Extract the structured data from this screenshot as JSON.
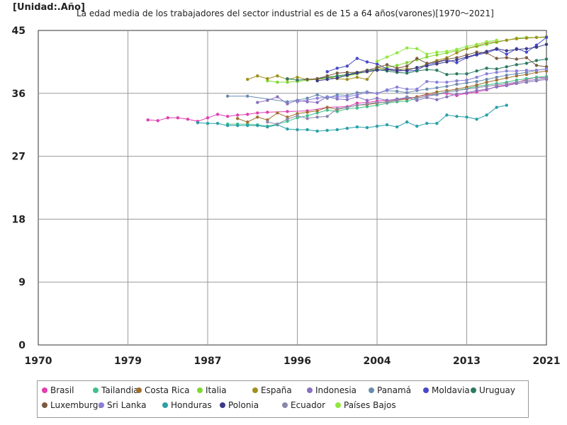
{
  "unit_label": "[Unidad:.Año]",
  "chart_data": {
    "type": "line",
    "title": "La edad media de los trabajadores del sector industrial es de 15 a 64 años(varones)[1970～2021]",
    "xlabel": "",
    "ylabel": "",
    "xlim": [
      1970,
      2021
    ],
    "ylim": [
      0,
      45
    ],
    "x_ticks": [
      "1970",
      "1979",
      "1987",
      "1996",
      "2004",
      "2013",
      "2021"
    ],
    "y_ticks": [
      "0",
      "9",
      "18",
      "27",
      "36",
      "45"
    ],
    "grid": true,
    "legend_position": "bottom",
    "series": [
      {
        "name": "Brasil",
        "color": "#e040b0",
        "x": [
          1981,
          1982,
          1983,
          1984,
          1985,
          1986,
          1987,
          1988,
          1989,
          1990,
          1991,
          1992,
          1993,
          1995,
          1997,
          1999,
          2001,
          2002,
          2003,
          2004,
          2005,
          2006,
          2007,
          2008,
          2009,
          2011,
          2012,
          2013,
          2014,
          2015,
          2016,
          2017,
          2018,
          2019,
          2020,
          2021
        ],
        "y": [
          32.2,
          32.1,
          32.5,
          32.5,
          32.3,
          32.0,
          32.5,
          33.0,
          32.7,
          32.9,
          33.0,
          33.2,
          33.3,
          33.4,
          33.5,
          34.0,
          34.1,
          34.6,
          34.7,
          34.9,
          35.0,
          35.1,
          35.3,
          35.5,
          35.8,
          36.0,
          35.7,
          36.0,
          36.2,
          36.5,
          37.0,
          37.2,
          37.5,
          38.0,
          38.3,
          38.2
        ]
      },
      {
        "name": "Tailandia",
        "color": "#3ec08a",
        "x": [
          1989,
          1990,
          1991,
          1992,
          1993,
          1994,
          1995,
          1996,
          1997,
          1998,
          1999,
          2000,
          2001,
          2002,
          2003,
          2004,
          2005,
          2006,
          2007,
          2008,
          2009,
          2010,
          2011,
          2012,
          2013,
          2014,
          2015,
          2016,
          2017,
          2018,
          2019,
          2020,
          2021
        ],
        "y": [
          31.6,
          31.6,
          31.6,
          31.5,
          31.3,
          31.6,
          32.0,
          32.5,
          32.8,
          33.2,
          33.6,
          33.4,
          33.8,
          33.9,
          34.1,
          34.3,
          34.6,
          34.8,
          34.9,
          35.3,
          35.6,
          35.9,
          36.2,
          36.4,
          36.7,
          37.0,
          37.2,
          37.4,
          37.6,
          37.9,
          38.1,
          38.3,
          38.4
        ]
      },
      {
        "name": "Costa Rica",
        "color": "#a07030",
        "x": [
          1990,
          1991,
          1992,
          1993,
          1994,
          1995,
          1996,
          1997,
          1998,
          1999,
          2000,
          2001,
          2002,
          2003,
          2004,
          2005,
          2006,
          2007,
          2008,
          2009,
          2010,
          2011,
          2012,
          2013,
          2014,
          2015,
          2016,
          2017,
          2018,
          2019,
          2020,
          2021
        ],
        "y": [
          32.4,
          31.9,
          32.6,
          32.2,
          33.2,
          32.6,
          33.1,
          33.3,
          33.5,
          34.0,
          33.7,
          34.0,
          34.3,
          34.4,
          34.6,
          34.8,
          35.0,
          35.2,
          35.5,
          35.9,
          36.2,
          36.4,
          36.6,
          36.9,
          37.2,
          37.6,
          37.9,
          38.2,
          38.5,
          38.7,
          39.0,
          39.2
        ]
      },
      {
        "name": "Italia",
        "color": "#80d830",
        "x": [
          1993,
          1994,
          1995,
          1996,
          1997,
          1998,
          1999,
          2000,
          2001,
          2002,
          2003,
          2004,
          2005,
          2006,
          2007,
          2008,
          2009,
          2010,
          2011,
          2012,
          2013,
          2014,
          2015,
          2016,
          2017,
          2018,
          2019,
          2020,
          2021
        ],
        "y": [
          37.8,
          37.6,
          37.6,
          37.7,
          37.9,
          38.0,
          38.2,
          38.4,
          38.5,
          38.8,
          39.1,
          39.4,
          39.7,
          40.0,
          40.4,
          40.8,
          41.2,
          41.5,
          41.8,
          42.1,
          42.4,
          42.7,
          43.0,
          43.3,
          43.6,
          43.9,
          44.0,
          44.0,
          44.0
        ]
      },
      {
        "name": "España",
        "color": "#a09020",
        "x": [
          1991,
          1992,
          1993,
          1994,
          1995,
          1996,
          1997,
          1998,
          1999,
          2000,
          2001,
          2002,
          2003,
          2004,
          2005,
          2006,
          2007,
          2008,
          2009,
          2010,
          2011,
          2012,
          2013,
          2014,
          2015,
          2016,
          2017,
          2018,
          2019,
          2020,
          2021
        ],
        "y": [
          38.0,
          38.5,
          38.1,
          38.5,
          38.0,
          38.3,
          38.0,
          38.0,
          38.3,
          38.1,
          38.0,
          38.3,
          38.0,
          39.8,
          39.4,
          39.4,
          39.5,
          39.6,
          40.2,
          40.7,
          41.1,
          41.8,
          42.4,
          42.8,
          43.2,
          43.4,
          43.6,
          43.8,
          43.9,
          44.0,
          44.1
        ]
      },
      {
        "name": "Indonesia",
        "color": "#8a70c0",
        "x": [
          1992,
          1993,
          1994,
          1995,
          1996,
          1997,
          1998,
          1999,
          2000,
          2001,
          2002,
          2003,
          2004,
          2005,
          2006,
          2007,
          2008,
          2009,
          2010,
          2011,
          2012,
          2013,
          2014,
          2015,
          2016,
          2017,
          2018,
          2019,
          2020,
          2021
        ],
        "y": [
          34.7,
          35.0,
          35.5,
          34.5,
          35.0,
          34.8,
          34.7,
          35.5,
          35.2,
          35.1,
          35.5,
          35.0,
          35.3,
          35.0,
          35.2,
          35.4,
          35.0,
          35.4,
          35.1,
          35.5,
          35.9,
          36.1,
          36.4,
          36.6,
          36.9,
          37.1,
          37.4,
          37.6,
          37.8,
          38.0
        ]
      },
      {
        "name": "Panamá",
        "color": "#6a8ab0",
        "x": [
          1989,
          1991,
          1995,
          1997,
          1998,
          1999,
          2000,
          2001,
          2002,
          2003,
          2004,
          2005,
          2006,
          2007,
          2008,
          2009,
          2010,
          2011,
          2012,
          2013,
          2014,
          2015,
          2016,
          2017,
          2018,
          2019,
          2020,
          2021
        ],
        "y": [
          35.6,
          35.6,
          34.8,
          35.3,
          35.8,
          35.3,
          35.8,
          35.7,
          36.1,
          36.2,
          36.0,
          36.4,
          36.3,
          36.1,
          36.4,
          36.6,
          36.8,
          37.0,
          37.3,
          37.5,
          37.7,
          38.0,
          38.3,
          38.6,
          38.8,
          39.0,
          39.3,
          39.5
        ]
      },
      {
        "name": "Moldavia",
        "color": "#4848c8",
        "x": [
          1999,
          2000,
          2001,
          2002,
          2003,
          2004,
          2005,
          2006,
          2007,
          2008,
          2009,
          2010,
          2011,
          2012,
          2013,
          2014,
          2015,
          2016,
          2017,
          2018,
          2019,
          2020,
          2021
        ],
        "y": [
          39.1,
          39.6,
          39.9,
          41.0,
          40.5,
          40.2,
          39.5,
          39.4,
          39.2,
          39.3,
          40.1,
          40.4,
          40.8,
          40.4,
          41.1,
          41.5,
          41.8,
          42.3,
          41.6,
          42.4,
          41.9,
          42.9,
          44.0
        ]
      },
      {
        "name": "Uruguay",
        "color": "#2a7a60",
        "x": [
          1995,
          1996,
          1997,
          1998,
          1999,
          2000,
          2001,
          2002,
          2003,
          2004,
          2005,
          2006,
          2007,
          2008,
          2009,
          2010,
          2011,
          2012,
          2013,
          2014,
          2015,
          2016,
          2017,
          2018,
          2019,
          2020,
          2021
        ],
        "y": [
          38.1,
          37.9,
          38.0,
          38.1,
          38.3,
          38.5,
          38.7,
          39.0,
          39.3,
          39.4,
          39.2,
          39.0,
          38.9,
          39.2,
          39.4,
          39.3,
          38.7,
          38.8,
          38.8,
          39.2,
          39.6,
          39.5,
          39.8,
          40.1,
          40.3,
          40.7,
          40.9
        ]
      },
      {
        "name": "Luxemburgo",
        "color": "#7a5a40",
        "x": [
          1997,
          1998,
          1999,
          2000,
          2001,
          2002,
          2003,
          2004,
          2005,
          2006,
          2007,
          2008,
          2009,
          2010,
          2011,
          2012,
          2013,
          2014,
          2015,
          2016,
          2017,
          2018,
          2019,
          2020,
          2021
        ],
        "y": [
          38.0,
          38.1,
          38.5,
          38.9,
          39.0,
          39.0,
          39.3,
          39.7,
          40.1,
          39.6,
          39.9,
          41.0,
          40.3,
          40.5,
          40.9,
          41.1,
          41.5,
          41.9,
          41.8,
          41.0,
          41.1,
          40.9,
          41.1,
          40.0,
          39.8
        ]
      },
      {
        "name": "Sri Lanka",
        "color": "#8a80d8",
        "x": [
          1996,
          1998,
          1999,
          2000,
          2001,
          2002,
          2003,
          2004,
          2005,
          2006,
          2007,
          2008,
          2009,
          2010,
          2011,
          2012,
          2013,
          2014,
          2015,
          2016,
          2017,
          2018,
          2019,
          2020,
          2021
        ],
        "y": [
          34.8,
          35.3,
          35.5,
          35.5,
          35.5,
          35.8,
          36.1,
          36.0,
          36.5,
          36.9,
          36.6,
          36.6,
          37.7,
          37.6,
          37.6,
          37.8,
          37.9,
          38.3,
          38.8,
          39.0,
          39.2,
          39.2,
          39.3,
          39.3,
          39.5
        ]
      },
      {
        "name": "Honduras",
        "color": "#2aa0a8",
        "x": [
          1986,
          1987,
          1988,
          1989,
          1990,
          1991,
          1992,
          1993,
          1994,
          1995,
          1996,
          1997,
          1998,
          1999,
          2000,
          2001,
          2002,
          2003,
          2004,
          2005,
          2006,
          2007,
          2008,
          2009,
          2010,
          2011,
          2012,
          2013,
          2014,
          2015,
          2016,
          2017
        ],
        "y": [
          31.8,
          31.7,
          31.7,
          31.4,
          31.4,
          31.4,
          31.4,
          31.2,
          31.5,
          30.9,
          30.8,
          30.8,
          30.6,
          30.7,
          30.8,
          31.0,
          31.2,
          31.1,
          31.3,
          31.5,
          31.2,
          31.9,
          31.3,
          31.7,
          31.7,
          32.9,
          32.7,
          32.6,
          32.3,
          32.9,
          34.0,
          34.3
        ]
      },
      {
        "name": "Polonia",
        "color": "#3a3a88",
        "x": [
          1998,
          1999,
          2000,
          2001,
          2002,
          2003,
          2004,
          2005,
          2006,
          2007,
          2008,
          2009,
          2010,
          2011,
          2012,
          2013,
          2014,
          2015,
          2016,
          2017,
          2018,
          2019,
          2020,
          2021
        ],
        "y": [
          37.8,
          38.0,
          38.2,
          38.6,
          38.9,
          39.1,
          39.3,
          39.4,
          39.2,
          39.3,
          39.7,
          39.9,
          40.2,
          40.5,
          40.8,
          41.2,
          41.6,
          42.0,
          42.4,
          42.1,
          42.3,
          42.4,
          42.6,
          43.0
        ]
      },
      {
        "name": "Ecuador",
        "color": "#8888aa",
        "x": [
          1993,
          1994,
          1995,
          1996,
          1997,
          1998,
          1999,
          2000,
          2001,
          2002,
          2003,
          2004,
          2005,
          2006,
          2007,
          2008,
          2009,
          2010,
          2011,
          2012,
          2013,
          2014,
          2015,
          2016,
          2017,
          2018,
          2019,
          2020,
          2021
        ],
        "y": [
          31.9,
          31.6,
          32.3,
          32.8,
          32.4,
          32.6,
          32.7,
          33.8,
          34.0,
          34.3,
          34.5,
          34.7,
          34.7,
          35.0,
          35.5,
          35.3,
          35.6,
          35.8,
          36.2,
          36.4,
          36.6,
          36.8,
          37.0,
          37.2,
          37.4,
          37.6,
          37.8,
          38.0,
          38.2
        ]
      },
      {
        "name": "Países Bajos",
        "color": "#90e840",
        "x": [
          2004,
          2005,
          2006,
          2007,
          2008,
          2009,
          2010,
          2011,
          2012,
          2013,
          2014,
          2015,
          2016
        ],
        "y": [
          40.6,
          41.2,
          41.8,
          42.5,
          42.4,
          41.6,
          41.9,
          42.0,
          42.3,
          42.7,
          43.0,
          43.4,
          43.6
        ]
      }
    ]
  }
}
